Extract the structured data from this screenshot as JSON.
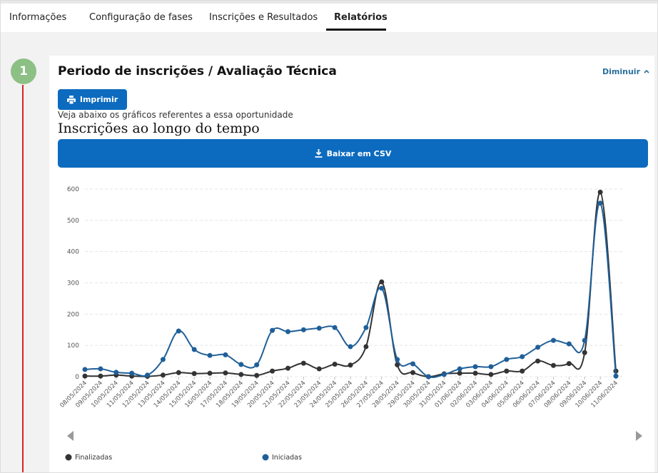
{
  "tabs": [
    "Informações",
    "Configuração de fases",
    "Inscrições e Resultados",
    "Relatórios"
  ],
  "step": "1",
  "section": {
    "title": "Periodo de inscrições / Avaliação Técnica",
    "collapse": "Diminuir",
    "print_button": "Imprimir",
    "description": "Veja abaixo os gráficos referentes a essa oportunidade",
    "csv_button": "Baixar em CSV"
  },
  "chart_data": {
    "type": "line",
    "title": "Inscrições ao longo do tempo",
    "x": [
      "08/05/2024",
      "09/05/2024",
      "10/05/2024",
      "11/05/2024",
      "12/05/2024",
      "13/05/2024",
      "14/05/2024",
      "15/05/2024",
      "16/05/2024",
      "17/05/2024",
      "18/05/2024",
      "19/05/2024",
      "20/05/2024",
      "21/05/2024",
      "22/05/2024",
      "23/05/2024",
      "24/05/2024",
      "25/05/2024",
      "26/05/2024",
      "27/05/2024",
      "28/05/2024",
      "29/05/2024",
      "30/05/2024",
      "31/05/2024",
      "01/06/2024",
      "02/06/2024",
      "03/06/2024",
      "04/06/2024",
      "05/06/2024",
      "06/06/2024",
      "07/06/2024",
      "08/06/2024",
      "09/06/2024",
      "10/06/2024",
      "11/06/2024"
    ],
    "series": [
      {
        "name": "Finalizadas",
        "color": "#333333",
        "values": [
          2,
          2,
          5,
          2,
          1,
          5,
          13,
          10,
          11,
          12,
          7,
          4,
          18,
          27,
          43,
          25,
          40,
          37,
          96,
          303,
          38,
          13,
          0,
          9,
          11,
          11,
          7,
          18,
          18,
          50,
          36,
          42,
          77,
          590,
          18
        ]
      },
      {
        "name": "Iniciadas",
        "color": "#1f5f99",
        "values": [
          23,
          25,
          14,
          11,
          5,
          55,
          146,
          87,
          68,
          70,
          39,
          38,
          148,
          144,
          150,
          155,
          157,
          96,
          157,
          283,
          55,
          41,
          0,
          7,
          25,
          32,
          32,
          55,
          64,
          94,
          116,
          105,
          116,
          555,
          2
        ]
      }
    ],
    "ylim": [
      0,
      600
    ],
    "yticks": [
      0,
      100,
      200,
      300,
      400,
      500,
      600
    ],
    "grid": true,
    "legend": "bottom"
  }
}
